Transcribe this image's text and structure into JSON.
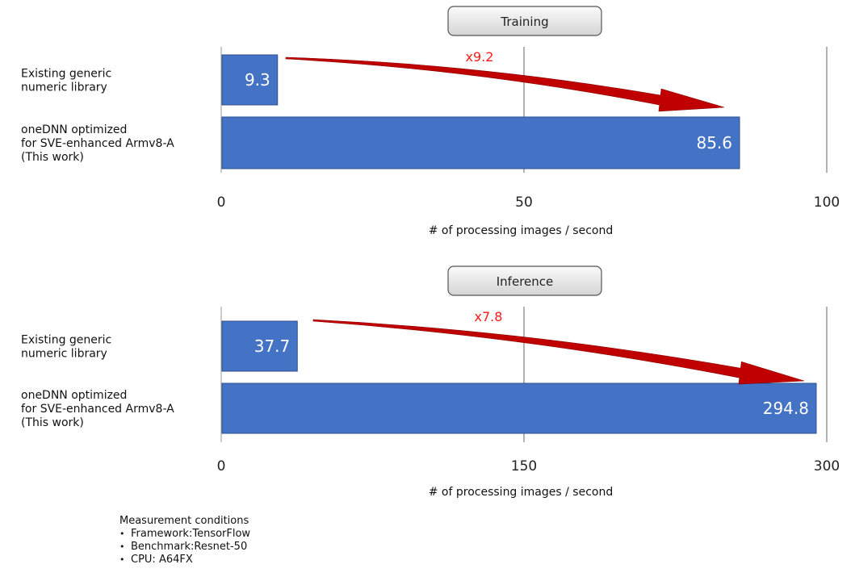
{
  "chart_data": [
    {
      "type": "bar",
      "orientation": "horizontal",
      "title": "Training",
      "categories": [
        "Existing generic numeric library",
        "oneDNN optimized for SVE-enhanced Armv8-A (This work)"
      ],
      "category_lines": [
        [
          "Existing generic",
          "numeric library"
        ],
        [
          "oneDNN optimized",
          "for SVE-enhanced Armv8-A",
          "(This work)"
        ]
      ],
      "values": [
        9.3,
        85.6
      ],
      "value_labels": [
        "9.3",
        "85.6"
      ],
      "xlim": [
        0,
        100
      ],
      "xticks": [
        0,
        50,
        100
      ],
      "xtick_labels": [
        "0",
        "50",
        "100"
      ],
      "xlabel": "# of processing images / second",
      "annotation": "x9.2",
      "grid": true,
      "bar_color": "#4472c4",
      "arrow_color": "#c00000"
    },
    {
      "type": "bar",
      "orientation": "horizontal",
      "title": "Inference",
      "categories": [
        "Existing generic numeric library",
        "oneDNN optimized for SVE-enhanced Armv8-A (This work)"
      ],
      "category_lines": [
        [
          "Existing generic",
          "numeric library"
        ],
        [
          "oneDNN optimized",
          "for SVE-enhanced Armv8-A",
          "(This work)"
        ]
      ],
      "values": [
        37.7,
        294.8
      ],
      "value_labels": [
        "37.7",
        "294.8"
      ],
      "xlim": [
        0,
        300
      ],
      "xticks": [
        0,
        150,
        300
      ],
      "xtick_labels": [
        "0",
        "150",
        "300"
      ],
      "xlabel": "# of processing images / second",
      "annotation": "x7.8",
      "grid": true,
      "bar_color": "#4472c4",
      "arrow_color": "#c00000"
    }
  ],
  "conditions": {
    "heading": "Measurement conditions",
    "items": [
      "Framework:TensorFlow",
      "Benchmark:Resnet-50",
      "CPU: A64FX"
    ]
  }
}
